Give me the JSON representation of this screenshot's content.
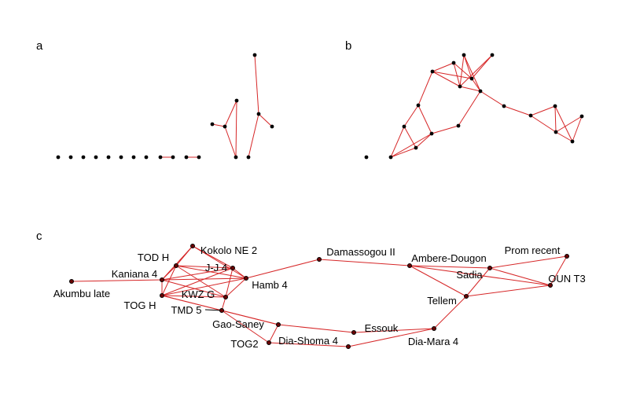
{
  "figure": {
    "colors": {
      "edge": "#d62728",
      "node": "#000000",
      "node_c": "#6b0000",
      "background": "#ffffff"
    }
  },
  "panels": [
    {
      "id": "a",
      "label": "a"
    },
    {
      "id": "b",
      "label": "b"
    },
    {
      "id": "c",
      "label": "c"
    }
  ],
  "network_c": {
    "nodes": [
      "Akumbu late",
      "Kaniana 4",
      "TOD H",
      "TOG H",
      "Kokolo NE 2",
      "J-J 4",
      "KWZ G",
      "TMD 5",
      "Hamb 4",
      "Gao-Saney",
      "TOG2",
      "Dia-Shoma 4",
      "Essouk",
      "Damassogou II",
      "Ambere-Dougon",
      "Prom recent",
      "Sadia",
      "OUN T3",
      "Tellem",
      "Dia-Mara 4"
    ]
  }
}
